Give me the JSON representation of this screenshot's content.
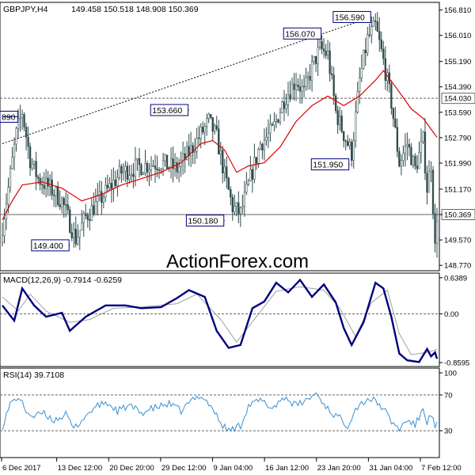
{
  "header": {
    "symbol_label": "GBPJPY,H4",
    "ohlc_label": "149.458 150.518 148.908 150.369"
  },
  "watermark": "ActionForex.com",
  "colors": {
    "frame": "#000000",
    "price_bars": "#2e4a4a",
    "moving_average": "#e00000",
    "trendline": "#000000",
    "macd_line": "#000080",
    "macd_signal": "#a0a0a0",
    "rsi_line": "#3a8fd0",
    "reference_lines": "#666666",
    "label_box_border": "#000080",
    "watermark": "#c8c8c8"
  },
  "chart_data": [
    {
      "type": "candlestick",
      "name": "price",
      "x_ticks": [
        "6 Dec 2017",
        "13 Dec 12:00",
        "20 Dec 20:00",
        "29 Dec 12:00",
        "9 Jan 04:00",
        "16 Jan 12:00",
        "23 Jan 20:00",
        "31 Jan 04:00",
        "7 Feb 12:00"
      ],
      "y_ticks": [
        156.81,
        156.01,
        155.19,
        154.39,
        153.59,
        152.79,
        151.99,
        151.17,
        150.37,
        149.57,
        148.77
      ],
      "y_tick_labels": [
        "156.810",
        "156.010",
        "155.190",
        "154.390",
        "153.590",
        "152.790",
        "151.990",
        "151.170",
        "150.369",
        "149.570",
        "148.770"
      ],
      "ylim": [
        148.6,
        157.05
      ],
      "price_anchors": [
        {
          "x": 0,
          "y": 150.0
        },
        {
          "x": 3,
          "y": 151.2
        },
        {
          "x": 7,
          "y": 152.9
        },
        {
          "x": 10,
          "y": 153.6
        },
        {
          "x": 14,
          "y": 152.1
        },
        {
          "x": 18,
          "y": 151.5
        },
        {
          "x": 24,
          "y": 151.2
        },
        {
          "x": 30,
          "y": 150.8
        },
        {
          "x": 34,
          "y": 150.1
        },
        {
          "x": 37,
          "y": 149.6
        },
        {
          "x": 42,
          "y": 150.3
        },
        {
          "x": 50,
          "y": 150.9
        },
        {
          "x": 60,
          "y": 151.7
        },
        {
          "x": 70,
          "y": 151.9
        },
        {
          "x": 80,
          "y": 152.0
        },
        {
          "x": 88,
          "y": 151.8
        },
        {
          "x": 95,
          "y": 152.4
        },
        {
          "x": 100,
          "y": 152.9
        },
        {
          "x": 104,
          "y": 153.3
        },
        {
          "x": 108,
          "y": 152.8
        },
        {
          "x": 112,
          "y": 151.6
        },
        {
          "x": 116,
          "y": 150.6
        },
        {
          "x": 120,
          "y": 150.4
        },
        {
          "x": 124,
          "y": 151.3
        },
        {
          "x": 130,
          "y": 152.6
        },
        {
          "x": 136,
          "y": 153.0
        },
        {
          "x": 142,
          "y": 154.0
        },
        {
          "x": 148,
          "y": 154.6
        },
        {
          "x": 152,
          "y": 154.2
        },
        {
          "x": 156,
          "y": 155.0
        },
        {
          "x": 160,
          "y": 155.6
        },
        {
          "x": 164,
          "y": 155.4
        },
        {
          "x": 168,
          "y": 153.6
        },
        {
          "x": 172,
          "y": 152.9
        },
        {
          "x": 176,
          "y": 152.3
        },
        {
          "x": 180,
          "y": 154.6
        },
        {
          "x": 184,
          "y": 155.9
        },
        {
          "x": 188,
          "y": 156.3
        },
        {
          "x": 192,
          "y": 155.2
        },
        {
          "x": 196,
          "y": 153.9
        },
        {
          "x": 200,
          "y": 152.0
        },
        {
          "x": 204,
          "y": 152.6
        },
        {
          "x": 208,
          "y": 151.8
        },
        {
          "x": 212,
          "y": 152.7
        },
        {
          "x": 214,
          "y": 151.2
        },
        {
          "x": 216,
          "y": 152.0
        },
        {
          "x": 218,
          "y": 149.3
        },
        {
          "x": 219,
          "y": 150.37
        }
      ],
      "moving_average": [
        {
          "x": 0,
          "y": 150.2
        },
        {
          "x": 5,
          "y": 150.8
        },
        {
          "x": 10,
          "y": 151.3
        },
        {
          "x": 20,
          "y": 151.4
        },
        {
          "x": 30,
          "y": 151.2
        },
        {
          "x": 40,
          "y": 150.8
        },
        {
          "x": 50,
          "y": 151.0
        },
        {
          "x": 60,
          "y": 151.3
        },
        {
          "x": 70,
          "y": 151.5
        },
        {
          "x": 80,
          "y": 151.7
        },
        {
          "x": 90,
          "y": 152.0
        },
        {
          "x": 100,
          "y": 152.6
        },
        {
          "x": 106,
          "y": 152.7
        },
        {
          "x": 112,
          "y": 152.4
        },
        {
          "x": 118,
          "y": 151.7
        },
        {
          "x": 124,
          "y": 151.9
        },
        {
          "x": 132,
          "y": 152.0
        },
        {
          "x": 140,
          "y": 152.5
        },
        {
          "x": 148,
          "y": 153.3
        },
        {
          "x": 156,
          "y": 153.8
        },
        {
          "x": 164,
          "y": 154.1
        },
        {
          "x": 172,
          "y": 153.8
        },
        {
          "x": 180,
          "y": 154.1
        },
        {
          "x": 188,
          "y": 154.6
        },
        {
          "x": 192,
          "y": 154.9
        },
        {
          "x": 198,
          "y": 154.4
        },
        {
          "x": 206,
          "y": 153.7
        },
        {
          "x": 212,
          "y": 153.4
        },
        {
          "x": 219,
          "y": 152.8
        }
      ],
      "trendline": {
        "from": {
          "x": 0,
          "y": 152.6
        },
        "to": {
          "x": 186,
          "y": 156.59
        }
      },
      "horizontal_levels": [
        154.03,
        150.369
      ],
      "annotations": [
        {
          "text": "890",
          "x": 0,
          "y": 153.45,
          "side": "left"
        },
        {
          "text": "149.400",
          "x": 34,
          "y": 149.4,
          "side": "left"
        },
        {
          "text": "153.660",
          "x": 94,
          "y": 153.66,
          "side": "left"
        },
        {
          "text": "150.180",
          "x": 112,
          "y": 150.18,
          "side": "left"
        },
        {
          "text": "156.070",
          "x": 161,
          "y": 156.07,
          "side": "left"
        },
        {
          "text": "151.950",
          "x": 175,
          "y": 151.95,
          "side": "left"
        },
        {
          "text": "156.590",
          "x": 186,
          "y": 156.59,
          "side": "left"
        },
        {
          "text": "154.030",
          "x": 220,
          "y": 154.03,
          "side": "axis"
        },
        {
          "text": "150.369",
          "x": 220,
          "y": 150.369,
          "side": "axis"
        }
      ]
    },
    {
      "type": "line",
      "name": "MACD(12,26,9)",
      "label": "MACD(12,26,9) -0.7914 -0.6259",
      "y_ticks": [
        0.6389,
        0.0,
        -0.8595
      ],
      "y_tick_labels": [
        "0.6389",
        "0.00",
        "-0.8595"
      ],
      "ylim": [
        -0.93,
        0.72
      ],
      "zero_line": 0.0,
      "series": [
        {
          "name": "main",
          "points": [
            {
              "x": 0,
              "y": 0.15
            },
            {
              "x": 6,
              "y": -0.12
            },
            {
              "x": 10,
              "y": 0.45
            },
            {
              "x": 16,
              "y": 0.15
            },
            {
              "x": 22,
              "y": -0.05
            },
            {
              "x": 30,
              "y": 0.02
            },
            {
              "x": 34,
              "y": -0.3
            },
            {
              "x": 42,
              "y": -0.05
            },
            {
              "x": 52,
              "y": 0.15
            },
            {
              "x": 62,
              "y": 0.15
            },
            {
              "x": 70,
              "y": 0.1
            },
            {
              "x": 80,
              "y": 0.12
            },
            {
              "x": 88,
              "y": 0.28
            },
            {
              "x": 94,
              "y": 0.42
            },
            {
              "x": 102,
              "y": 0.3
            },
            {
              "x": 108,
              "y": -0.3
            },
            {
              "x": 114,
              "y": -0.6
            },
            {
              "x": 120,
              "y": -0.55
            },
            {
              "x": 126,
              "y": 0.1
            },
            {
              "x": 132,
              "y": 0.22
            },
            {
              "x": 138,
              "y": 0.55
            },
            {
              "x": 144,
              "y": 0.38
            },
            {
              "x": 150,
              "y": 0.6
            },
            {
              "x": 156,
              "y": 0.3
            },
            {
              "x": 162,
              "y": 0.52
            },
            {
              "x": 168,
              "y": 0.2
            },
            {
              "x": 172,
              "y": -0.25
            },
            {
              "x": 176,
              "y": -0.55
            },
            {
              "x": 182,
              "y": -0.15
            },
            {
              "x": 188,
              "y": 0.55
            },
            {
              "x": 192,
              "y": 0.45
            },
            {
              "x": 196,
              "y": -0.05
            },
            {
              "x": 200,
              "y": -0.7
            },
            {
              "x": 204,
              "y": -0.82
            },
            {
              "x": 210,
              "y": -0.85
            },
            {
              "x": 214,
              "y": -0.62
            },
            {
              "x": 216,
              "y": -0.75
            },
            {
              "x": 218,
              "y": -0.68
            },
            {
              "x": 219,
              "y": -0.7914
            }
          ]
        },
        {
          "name": "signal",
          "points": [
            {
              "x": 0,
              "y": 0.3
            },
            {
              "x": 8,
              "y": 0.05
            },
            {
              "x": 14,
              "y": 0.35
            },
            {
              "x": 22,
              "y": 0.05
            },
            {
              "x": 34,
              "y": -0.15
            },
            {
              "x": 44,
              "y": -0.1
            },
            {
              "x": 56,
              "y": 0.1
            },
            {
              "x": 70,
              "y": 0.12
            },
            {
              "x": 88,
              "y": 0.18
            },
            {
              "x": 98,
              "y": 0.35
            },
            {
              "x": 110,
              "y": -0.1
            },
            {
              "x": 118,
              "y": -0.5
            },
            {
              "x": 128,
              "y": -0.05
            },
            {
              "x": 138,
              "y": 0.4
            },
            {
              "x": 150,
              "y": 0.48
            },
            {
              "x": 162,
              "y": 0.42
            },
            {
              "x": 170,
              "y": 0.1
            },
            {
              "x": 178,
              "y": -0.4
            },
            {
              "x": 186,
              "y": 0.2
            },
            {
              "x": 194,
              "y": 0.42
            },
            {
              "x": 200,
              "y": -0.35
            },
            {
              "x": 206,
              "y": -0.72
            },
            {
              "x": 214,
              "y": -0.68
            },
            {
              "x": 219,
              "y": -0.6259
            }
          ]
        }
      ]
    },
    {
      "type": "line",
      "name": "RSI(14)",
      "label": "RSI(14) 39.7108",
      "y_ticks": [
        100,
        70,
        30
      ],
      "y_tick_labels": [
        "100",
        "70",
        "30"
      ],
      "ylim": [
        0,
        100
      ],
      "reference_levels": [
        70,
        30
      ],
      "series": [
        {
          "name": "rsi",
          "points": [
            {
              "x": 0,
              "y": 35
            },
            {
              "x": 4,
              "y": 60
            },
            {
              "x": 8,
              "y": 68
            },
            {
              "x": 12,
              "y": 52
            },
            {
              "x": 16,
              "y": 45
            },
            {
              "x": 20,
              "y": 50
            },
            {
              "x": 26,
              "y": 42
            },
            {
              "x": 32,
              "y": 48
            },
            {
              "x": 36,
              "y": 32
            },
            {
              "x": 40,
              "y": 42
            },
            {
              "x": 46,
              "y": 55
            },
            {
              "x": 52,
              "y": 62
            },
            {
              "x": 58,
              "y": 52
            },
            {
              "x": 64,
              "y": 58
            },
            {
              "x": 70,
              "y": 50
            },
            {
              "x": 76,
              "y": 55
            },
            {
              "x": 84,
              "y": 60
            },
            {
              "x": 90,
              "y": 52
            },
            {
              "x": 96,
              "y": 65
            },
            {
              "x": 100,
              "y": 70
            },
            {
              "x": 106,
              "y": 55
            },
            {
              "x": 110,
              "y": 38
            },
            {
              "x": 114,
              "y": 30
            },
            {
              "x": 120,
              "y": 36
            },
            {
              "x": 124,
              "y": 58
            },
            {
              "x": 130,
              "y": 64
            },
            {
              "x": 136,
              "y": 55
            },
            {
              "x": 142,
              "y": 68
            },
            {
              "x": 148,
              "y": 58
            },
            {
              "x": 154,
              "y": 65
            },
            {
              "x": 158,
              "y": 72
            },
            {
              "x": 162,
              "y": 60
            },
            {
              "x": 166,
              "y": 50
            },
            {
              "x": 170,
              "y": 44
            },
            {
              "x": 174,
              "y": 36
            },
            {
              "x": 178,
              "y": 55
            },
            {
              "x": 184,
              "y": 66
            },
            {
              "x": 188,
              "y": 63
            },
            {
              "x": 192,
              "y": 55
            },
            {
              "x": 196,
              "y": 40
            },
            {
              "x": 200,
              "y": 32
            },
            {
              "x": 204,
              "y": 42
            },
            {
              "x": 208,
              "y": 36
            },
            {
              "x": 212,
              "y": 54
            },
            {
              "x": 214,
              "y": 40
            },
            {
              "x": 216,
              "y": 48
            },
            {
              "x": 218,
              "y": 34
            },
            {
              "x": 219,
              "y": 39.7108
            }
          ]
        }
      ]
    }
  ]
}
